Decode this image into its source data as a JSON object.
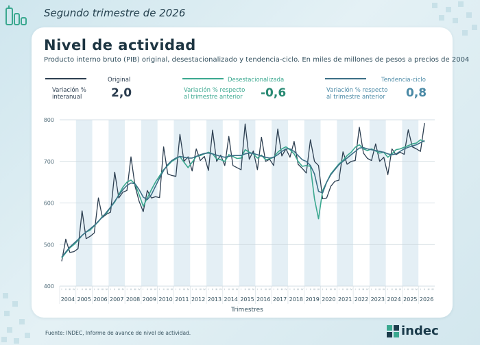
{
  "header": {
    "quarter": "Segundo trimestre de 2026"
  },
  "card": {
    "title": "Nivel de actividad",
    "subtitle": "Producto interno bruto (PIB) original, desestacionalizado y tendencia-ciclo. En miles de millones de pesos a precios de 2004"
  },
  "indicators": {
    "original": {
      "row_label": "Variación %\ninteranual",
      "name": "Original",
      "value": "2,0"
    },
    "desest": {
      "name": "Desestacionalizada",
      "desc": "Variación % respecto\nal trimestre anterior",
      "value": "-0,6"
    },
    "tendencia": {
      "name": "Tendencia-ciclo",
      "desc": "Variación % respecto\nal trimestre anterior",
      "value": "0,8"
    }
  },
  "colors": {
    "original": "#2c3e50",
    "desest": "#3aa88f",
    "tendencia": "#3b6f86",
    "band": "#e4eff5",
    "accent_teal": "#3aa88f",
    "accent_blue": "#4b8aa6"
  },
  "footer": {
    "source": "Fuente: INDEC, Informe de avance de nivel de actividad.",
    "brand": "indec"
  },
  "chart_data": {
    "type": "line",
    "xlabel": "Trimestres",
    "ylabel": "",
    "ylim": [
      400,
      800
    ],
    "yticks": [
      400,
      500,
      600,
      700,
      800
    ],
    "years": [
      "2004",
      "2005",
      "2006",
      "2007",
      "2008",
      "2009",
      "2010",
      "2011",
      "2012",
      "2013",
      "2014",
      "2015",
      "2016",
      "2017",
      "2018",
      "2019",
      "2020",
      "2021",
      "2022",
      "2023",
      "2024",
      "2025",
      "2026"
    ],
    "quarter_labels": [
      "I",
      "II",
      "III",
      "IV"
    ],
    "grid": true,
    "series": [
      {
        "name": "Original",
        "values": [
          460,
          513,
          481,
          483,
          490,
          581,
          514,
          520,
          528,
          612,
          565,
          573,
          578,
          674,
          612,
          626,
          630,
          711,
          640,
          604,
          579,
          630,
          612,
          615,
          613,
          735,
          670,
          666,
          664,
          765,
          700,
          711,
          677,
          730,
          702,
          712,
          678,
          775,
          700,
          715,
          690,
          760,
          690,
          685,
          680,
          790,
          705,
          725,
          680,
          758,
          700,
          705,
          690,
          778,
          713,
          730,
          710,
          748,
          693,
          683,
          672,
          752,
          700,
          690,
          610,
          612,
          640,
          652,
          655,
          723,
          693,
          700,
          702,
          782,
          720,
          707,
          702,
          742,
          700,
          710,
          668,
          730,
          716,
          722,
          717,
          776,
          735,
          730,
          724,
          792
        ]
      },
      {
        "name": "Desestacionalizada",
        "values": [
          468,
          480,
          492,
          500,
          510,
          522,
          530,
          535,
          545,
          555,
          568,
          575,
          590,
          602,
          620,
          638,
          650,
          655,
          645,
          620,
          592,
          612,
          632,
          650,
          665,
          680,
          690,
          700,
          706,
          712,
          698,
          685,
          698,
          712,
          714,
          718,
          722,
          718,
          706,
          704,
          700,
          716,
          712,
          707,
          708,
          728,
          722,
          718,
          708,
          715,
          704,
          706,
          710,
          722,
          730,
          735,
          728,
          718,
          700,
          688,
          690,
          688,
          610,
          562,
          630,
          650,
          670,
          682,
          694,
          702,
          714,
          722,
          734,
          740,
          730,
          726,
          730,
          725,
          720,
          722,
          710,
          718,
          728,
          730,
          734,
          738,
          742,
          744,
          752,
          747
        ]
      },
      {
        "name": "Tendencia-ciclo",
        "values": [
          470,
          482,
          494,
          503,
          512,
          522,
          530,
          538,
          546,
          556,
          566,
          578,
          590,
          604,
          618,
          632,
          642,
          648,
          646,
          632,
          614,
          608,
          620,
          640,
          660,
          678,
          692,
          702,
          708,
          712,
          710,
          708,
          708,
          712,
          716,
          719,
          720,
          718,
          715,
          712,
          710,
          712,
          714,
          714,
          714,
          718,
          720,
          719,
          716,
          713,
          710,
          708,
          710,
          716,
          724,
          730,
          730,
          724,
          714,
          704,
          700,
          690,
          670,
          628,
          624,
          650,
          668,
          680,
          692,
          700,
          708,
          716,
          724,
          732,
          733,
          730,
          728,
          726,
          724,
          722,
          718,
          716,
          718,
          724,
          730,
          734,
          737,
          740,
          745,
          750
        ]
      }
    ]
  }
}
